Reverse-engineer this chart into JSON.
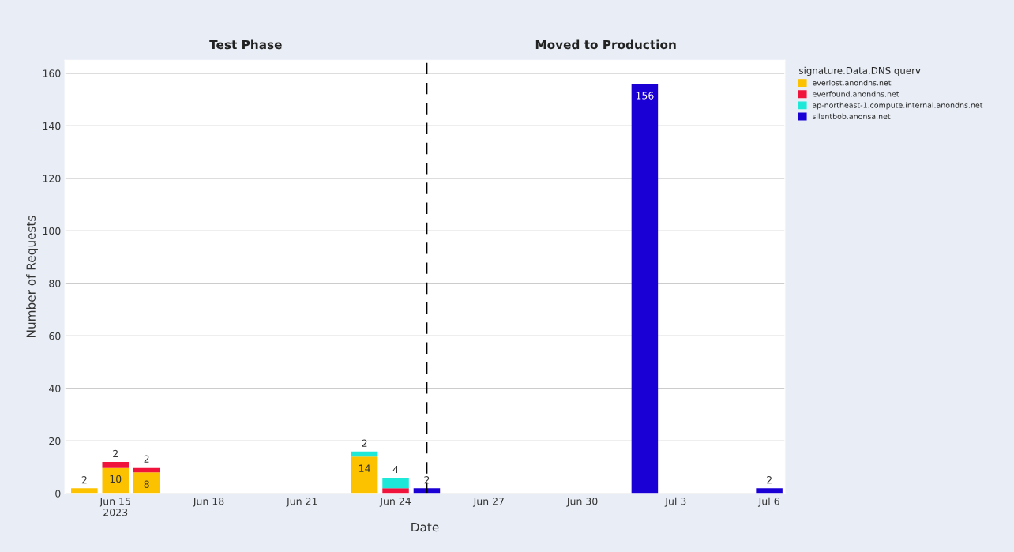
{
  "chart_data": {
    "type": "bar",
    "stacked": true,
    "xlabel": "Date",
    "ylabel": "Number of Requests",
    "legend_title": "signature.Data.DNS querv",
    "x": [
      "2023-06-14",
      "2023-06-15",
      "2023-06-16",
      "2023-06-23",
      "2023-06-24",
      "2023-06-25",
      "2023-07-02",
      "2023-07-06"
    ],
    "series": [
      {
        "name": "everlost.anondns.net",
        "color": "#fcc200",
        "values": [
          2,
          10,
          8,
          14,
          null,
          null,
          null,
          null
        ],
        "value_labels": [
          "2",
          "10",
          "8",
          "14",
          null,
          null,
          null,
          null
        ]
      },
      {
        "name": "everfound.anondns.net",
        "color": "#f0143c",
        "values": [
          null,
          2,
          2,
          null,
          2,
          null,
          null,
          null
        ],
        "value_labels": [
          null,
          "2",
          "2",
          null,
          null,
          null,
          null,
          null
        ]
      },
      {
        "name": "ap-northeast-1.compute.internal.anondns.net",
        "color": "#1ee8d8",
        "values": [
          null,
          null,
          null,
          2,
          4,
          null,
          null,
          null
        ],
        "value_labels": [
          null,
          null,
          null,
          "2",
          "4",
          null,
          null,
          null
        ]
      },
      {
        "name": "silentbob.anonsa.net",
        "color": "#1a00d4",
        "values": [
          null,
          null,
          null,
          null,
          null,
          2,
          156,
          2
        ],
        "value_labels": [
          null,
          null,
          null,
          null,
          null,
          "2",
          "156",
          "2"
        ]
      }
    ],
    "xlim": [
      "2023-06-13T09:00",
      "2023-07-06T12:00"
    ],
    "xticks": [
      {
        "value": "2023-06-15",
        "label": "Jun 15\n2023"
      },
      {
        "value": "2023-06-18",
        "label": "Jun 18"
      },
      {
        "value": "2023-06-21",
        "label": "Jun 21"
      },
      {
        "value": "2023-06-24",
        "label": "Jun 24"
      },
      {
        "value": "2023-06-27",
        "label": "Jun 27"
      },
      {
        "value": "2023-06-30",
        "label": "Jun 30"
      },
      {
        "value": "2023-07-03",
        "label": "Jul 3"
      },
      {
        "value": "2023-07-06",
        "label": "Jul 6"
      }
    ],
    "ylim": [
      0,
      165
    ],
    "yticks": [
      0,
      20,
      40,
      60,
      80,
      100,
      120,
      140,
      160
    ],
    "grid": "y",
    "legend": "top right",
    "ref_lines": [
      {
        "axis": "x",
        "value": "2023-06-25",
        "color": "#000000",
        "line_style": "dashed"
      }
    ],
    "annotations": [
      "Test Phase",
      "Moved to Production"
    ]
  }
}
